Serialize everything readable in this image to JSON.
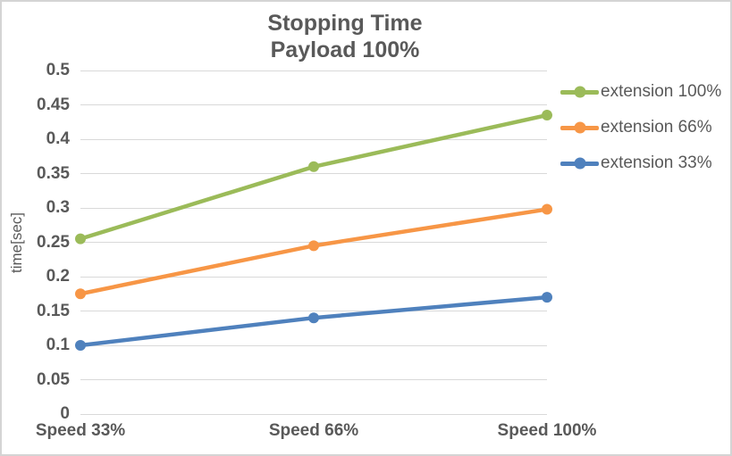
{
  "chart_data": {
    "type": "line",
    "title": "Stopping Time",
    "subtitle": "Payload 100%",
    "ylabel": "time[sec]",
    "xlabel": "",
    "categories": [
      "Speed 33%",
      "Speed 66%",
      "Speed 100%"
    ],
    "series": [
      {
        "name": "extension 100%",
        "color": "#9BBB59",
        "values": [
          0.255,
          0.36,
          0.435
        ]
      },
      {
        "name": "extension 66%",
        "color": "#F79646",
        "values": [
          0.175,
          0.245,
          0.298
        ]
      },
      {
        "name": "extension 33%",
        "color": "#4F81BD",
        "values": [
          0.1,
          0.14,
          0.17
        ]
      }
    ],
    "ylim": [
      0,
      0.5
    ],
    "yticks": [
      {
        "value": 0,
        "label": "0"
      },
      {
        "value": 0.05,
        "label": "0.05"
      },
      {
        "value": 0.1,
        "label": "0.1"
      },
      {
        "value": 0.15,
        "label": "0.15"
      },
      {
        "value": 0.2,
        "label": "0.2"
      },
      {
        "value": 0.25,
        "label": "0.25"
      },
      {
        "value": 0.3,
        "label": "0.3"
      },
      {
        "value": 0.35,
        "label": "0.35"
      },
      {
        "value": 0.4,
        "label": "0.4"
      },
      {
        "value": 0.45,
        "label": "0.45"
      },
      {
        "value": 0.5,
        "label": "0.5"
      }
    ],
    "grid": true,
    "legend_position": "right",
    "colors": {
      "text": "#595959",
      "gridline": "#D9D9D9",
      "border": "#D4D4D4",
      "background": "#FFFFFF"
    }
  }
}
